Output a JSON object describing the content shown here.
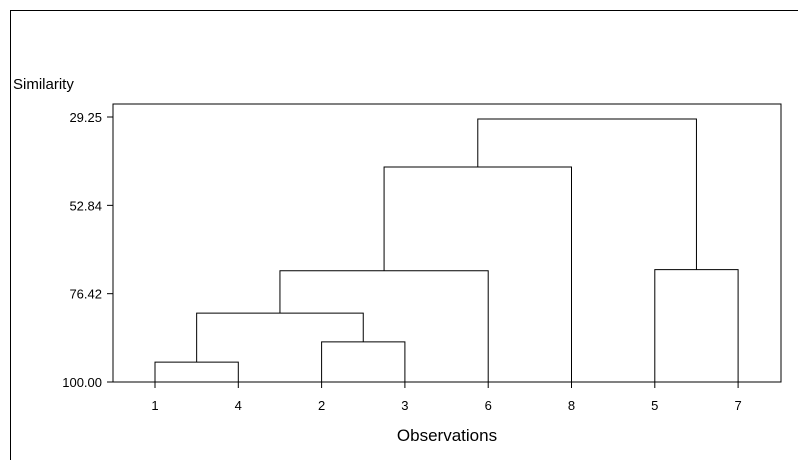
{
  "chart_data": {
    "type": "dendrogram",
    "ylabel": "Similarity",
    "xlabel": "Observations",
    "ylim": [
      29.25,
      100.0
    ],
    "y_ticks": [
      "29.25",
      "52.84",
      "76.42",
      "100.00"
    ],
    "leaves": [
      "1",
      "4",
      "2",
      "3",
      "6",
      "8",
      "5",
      "7"
    ],
    "merges": [
      {
        "left": "1",
        "right": "4",
        "similarity": 94.7
      },
      {
        "left": "2",
        "right": "3",
        "similarity": 89.3
      },
      {
        "left": "1-4",
        "right": "2-3",
        "similarity": 81.6
      },
      {
        "left": "1-4-2-3",
        "right": "6",
        "similarity": 70.3
      },
      {
        "left": "5",
        "right": "7",
        "similarity": 70.0
      },
      {
        "left": "1-4-2-3-6",
        "right": "8",
        "similarity": 42.6
      },
      {
        "left": "1-4-2-3-6-8",
        "right": "5-7",
        "similarity": 29.8
      }
    ]
  }
}
